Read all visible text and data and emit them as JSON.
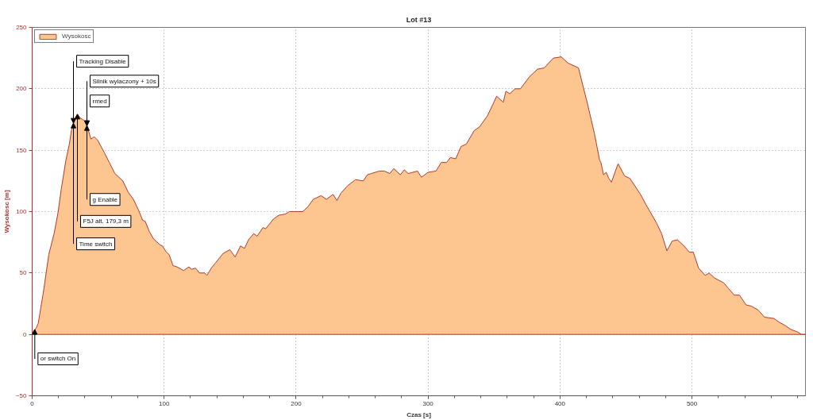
{
  "chart_data": {
    "type": "area",
    "title": "Lot #13",
    "xlabel": "Czas [s]",
    "ylabel": "Wysokosc [m]",
    "x": [
      0,
      1.2,
      2,
      3,
      4.6,
      6.6,
      8.6,
      10.6,
      12.6,
      16.6,
      19.6,
      22,
      23.5,
      25.6,
      28.2,
      29.6,
      30.6,
      31.3,
      32.5,
      34.3,
      36.7,
      39.7,
      41.5,
      44.6,
      47,
      49.7,
      54.7,
      58,
      62.7,
      68.7,
      72.7,
      76.7,
      80.7,
      83.7,
      85.7,
      88.7,
      91.8,
      96.8,
      98.7,
      101.7,
      103.8,
      106.8,
      109.8,
      114.8,
      118.8,
      120.8,
      123.8,
      126.8,
      130.8,
      132.4,
      135.8,
      138.8,
      144.8,
      149.8,
      153.8,
      157.9,
      160.9,
      163.9,
      167.9,
      170.5,
      174.9,
      176.9,
      182.9,
      186.9,
      191.9,
      194.9,
      200,
      205,
      209,
      213,
      219,
      223,
      228,
      231,
      234,
      239,
      245,
      251,
      254,
      257,
      263,
      267,
      271,
      274,
      279,
      282,
      285,
      292,
      295,
      300,
      306,
      310,
      314,
      317,
      321,
      325,
      329,
      335,
      339,
      345,
      349,
      352,
      357,
      359,
      362,
      366,
      370,
      377,
      383,
      388,
      395,
      401,
      406,
      414,
      421,
      426,
      430,
      431,
      433,
      435,
      437,
      439,
      444,
      449,
      453,
      461,
      465,
      473,
      477,
      481,
      485,
      489,
      494,
      498,
      501,
      505,
      510,
      513,
      517,
      524,
      532,
      536,
      541,
      545,
      550,
      555,
      562,
      566,
      571,
      575,
      580,
      583,
      586
    ],
    "series": [
      {
        "name": "Wysokosc",
        "color": "#fdc590",
        "values": [
          0,
          3,
          4,
          5,
          9,
          22,
          35,
          50,
          65,
          82,
          99,
          118,
          128,
          142,
          155,
          165,
          170,
          172,
          176,
          179.3,
          176,
          174,
          170,
          159,
          161,
          158,
          148,
          141,
          131,
          125,
          116,
          110,
          101,
          93,
          92,
          84,
          78,
          73,
          72,
          67,
          65,
          56,
          55,
          52,
          55,
          53,
          54,
          50,
          50,
          48,
          54,
          58,
          66,
          69,
          63,
          72,
          70,
          77,
          82,
          80,
          87,
          86,
          94,
          97,
          98,
          100,
          100,
          100,
          104,
          110,
          113,
          110,
          114,
          109,
          115,
          121,
          126,
          125,
          130,
          131,
          133,
          133,
          131,
          135,
          130,
          134,
          131,
          133,
          128,
          132,
          133,
          140,
          140,
          144,
          143,
          153,
          155,
          166,
          169,
          178,
          187,
          194,
          189,
          198,
          196,
          200,
          200,
          210,
          216,
          217,
          225,
          226,
          221,
          217,
          187,
          164,
          142,
          140,
          130,
          132,
          127,
          124,
          139,
          129,
          127,
          114,
          106,
          91,
          82,
          68,
          76,
          77,
          72,
          67,
          67,
          54,
          48,
          50,
          46,
          42,
          32,
          32,
          24,
          23,
          20,
          14,
          13,
          10,
          7,
          4,
          2,
          0,
          0
        ]
      }
    ],
    "xlim": [
      0,
      586
    ],
    "ylim": [
      -50,
      250
    ],
    "xticks": [
      0,
      {
        "value": 20,
        "label": null
      },
      {
        "value": 40,
        "label": null
      },
      {
        "value": 60,
        "label": null
      },
      {
        "value": 80,
        "label": null
      },
      100,
      {
        "value": 120,
        "label": null
      },
      {
        "value": 140,
        "label": null
      },
      {
        "value": 160,
        "label": null
      },
      {
        "value": 180,
        "label": null
      },
      200,
      {
        "value": 220,
        "label": null
      },
      {
        "value": 240,
        "label": null
      },
      {
        "value": 260,
        "label": null
      },
      {
        "value": 280,
        "label": null
      },
      300,
      {
        "value": 320,
        "label": null
      },
      {
        "value": 340,
        "label": null
      },
      {
        "value": 360,
        "label": null
      },
      {
        "value": 380,
        "label": null
      },
      400,
      {
        "value": 420,
        "label": null
      },
      {
        "value": 440,
        "label": null
      },
      {
        "value": 460,
        "label": null
      },
      {
        "value": 480,
        "label": null
      },
      500,
      {
        "value": 520,
        "label": null
      },
      {
        "value": 540,
        "label": null
      },
      {
        "value": 560,
        "label": null
      },
      {
        "value": 580,
        "label": null
      }
    ],
    "yticks": [
      -50,
      0,
      50,
      100,
      150,
      200,
      250
    ],
    "grid": true,
    "legend": "top left",
    "annotations": [
      {
        "text": "or switch On",
        "x": 2,
        "y": 4
      },
      {
        "text": "Tracking Disable",
        "x": 31.3,
        "y": 172
      },
      {
        "text": "Time switch",
        "x": 31.3,
        "y": 172
      },
      {
        "text": "F5J alt. 179,3 m",
        "x": 34.3,
        "y": 179.3
      },
      {
        "text": "Silnik wylaczony + 10s",
        "x": 41.5,
        "y": 170
      },
      {
        "text": "rmed",
        "x": 41.5,
        "y": 170
      },
      {
        "text": "g Enable",
        "x": 41.5,
        "y": 170
      }
    ]
  }
}
